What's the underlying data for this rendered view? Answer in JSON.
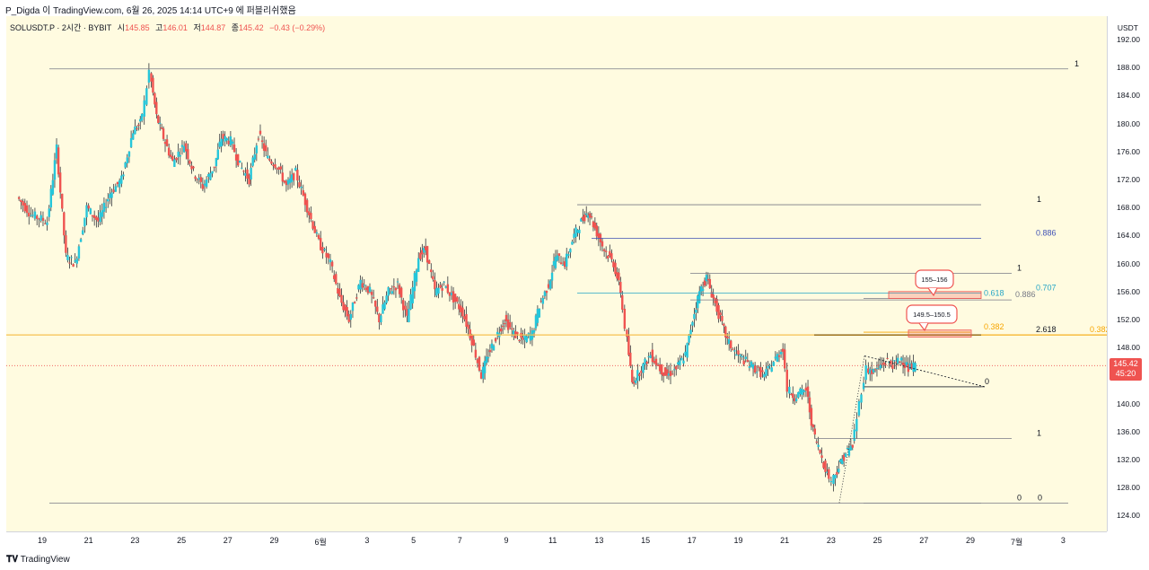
{
  "header": {
    "caption": "P_Digda 이 TradingView.com, 6월 26, 2025 14:14 UTC+9 에 퍼블리쉬했음"
  },
  "legend": {
    "symbol": "SOLUSDT.P · 2시간 · BYBIT",
    "open_label": "시",
    "open": "145.85",
    "high_label": "고",
    "high": "146.01",
    "low_label": "저",
    "low": "144.87",
    "close_label": "종",
    "close": "145.42",
    "change": "−0.43 (−0.29%)"
  },
  "price_axis": {
    "currency": "USDT",
    "ticks": [
      "192.00",
      "188.00",
      "184.00",
      "180.00",
      "176.00",
      "172.00",
      "168.00",
      "164.00",
      "160.00",
      "156.00",
      "152.00",
      "148.00",
      "144.00",
      "140.00",
      "136.00",
      "132.00",
      "128.00",
      "124.00"
    ],
    "last_price": "145.42",
    "countdown": "45:20"
  },
  "time_axis": {
    "ticks": [
      "19",
      "21",
      "23",
      "25",
      "27",
      "29",
      "6월",
      "3",
      "5",
      "7",
      "9",
      "11",
      "13",
      "15",
      "17",
      "19",
      "21",
      "23",
      "25",
      "27",
      "29",
      "7월",
      "3"
    ]
  },
  "footer": {
    "brand": "TradingView"
  },
  "colors": {
    "up": "#26c6da",
    "down": "#ef5350",
    "background": "#fffbe0",
    "level": "#f7c04f"
  },
  "chart_data": {
    "type": "candlestick",
    "symbol": "SOLUSDT.P",
    "interval": "2시간",
    "exchange": "BYBIT",
    "ylim": [
      122,
      194
    ],
    "x_range_days": [
      18,
      53
    ],
    "path_points": [
      [
        18.0,
        169.5
      ],
      [
        18.6,
        167.0
      ],
      [
        19.3,
        166.0
      ],
      [
        19.7,
        176.5
      ],
      [
        20.1,
        161.0
      ],
      [
        20.5,
        160.0
      ],
      [
        21.0,
        168.0
      ],
      [
        21.5,
        166.0
      ],
      [
        22.0,
        170.0
      ],
      [
        22.5,
        172.0
      ],
      [
        23.0,
        179.0
      ],
      [
        23.3,
        180.0
      ],
      [
        23.5,
        183.0
      ],
      [
        23.7,
        187.5
      ],
      [
        24.0,
        181.0
      ],
      [
        24.3,
        178.0
      ],
      [
        24.7,
        174.5
      ],
      [
        25.2,
        177.0
      ],
      [
        25.6,
        173.0
      ],
      [
        26.0,
        171.0
      ],
      [
        26.5,
        174.0
      ],
      [
        26.8,
        178.0
      ],
      [
        27.2,
        177.5
      ],
      [
        27.6,
        174.0
      ],
      [
        28.0,
        172.0
      ],
      [
        28.4,
        178.5
      ],
      [
        28.8,
        175.0
      ],
      [
        29.2,
        174.0
      ],
      [
        29.6,
        171.0
      ],
      [
        30.0,
        173.0
      ],
      [
        30.5,
        168.0
      ],
      [
        31.0,
        163.0
      ],
      [
        31.5,
        160.0
      ],
      [
        31.9,
        155.0
      ],
      [
        32.3,
        152.0
      ],
      [
        32.8,
        157.5
      ],
      [
        33.2,
        156.0
      ],
      [
        33.6,
        152.0
      ],
      [
        34.0,
        156.0
      ],
      [
        34.4,
        157.0
      ],
      [
        34.8,
        152.0
      ],
      [
        35.3,
        161.0
      ],
      [
        35.6,
        162.0
      ],
      [
        36.0,
        156.0
      ],
      [
        36.4,
        157.0
      ],
      [
        36.8,
        155.0
      ],
      [
        37.2,
        153.0
      ],
      [
        37.6,
        149.0
      ],
      [
        38.0,
        144.0
      ],
      [
        38.3,
        147.0
      ],
      [
        38.7,
        150.0
      ],
      [
        39.0,
        152.0
      ],
      [
        39.4,
        150.0
      ],
      [
        39.8,
        149.0
      ],
      [
        40.2,
        150.0
      ],
      [
        40.5,
        154.0
      ],
      [
        40.9,
        157.0
      ],
      [
        41.2,
        161.0
      ],
      [
        41.6,
        160.0
      ],
      [
        42.0,
        164.0
      ],
      [
        42.3,
        166.0
      ],
      [
        42.6,
        167.5
      ],
      [
        42.9,
        165.0
      ],
      [
        43.3,
        162.0
      ],
      [
        43.7,
        160.0
      ],
      [
        44.0,
        156.0
      ],
      [
        44.2,
        151.0
      ],
      [
        44.5,
        143.0
      ],
      [
        44.9,
        145.0
      ],
      [
        45.3,
        147.0
      ],
      [
        45.7,
        145.0
      ],
      [
        46.0,
        144.0
      ],
      [
        46.4,
        145.0
      ],
      [
        46.8,
        147.0
      ],
      [
        47.1,
        152.0
      ],
      [
        47.4,
        156.0
      ],
      [
        47.7,
        158.0
      ],
      [
        48.0,
        155.0
      ],
      [
        48.3,
        152.0
      ],
      [
        48.6,
        149.0
      ],
      [
        49.0,
        147.0
      ],
      [
        49.4,
        146.0
      ],
      [
        49.8,
        145.0
      ],
      [
        50.2,
        144.0
      ],
      [
        50.6,
        146.0
      ],
      [
        51.0,
        148.0
      ],
      [
        51.2,
        142.0
      ],
      [
        51.5,
        141.0
      ],
      [
        52.0,
        142.0
      ],
      [
        52.3,
        136.0
      ],
      [
        52.6,
        133.0
      ],
      [
        52.9,
        130.0
      ],
      [
        53.1,
        129.0
      ]
    ],
    "segment2_points": [
      [
        53.1,
        129.0
      ],
      [
        53.4,
        131.0
      ],
      [
        53.7,
        133.0
      ],
      [
        54.0,
        134.0
      ],
      [
        54.2,
        138.0
      ],
      [
        54.4,
        142.0
      ],
      [
        54.6,
        145.0
      ],
      [
        54.9,
        144.5
      ],
      [
        55.2,
        145.5
      ],
      [
        55.5,
        146.0
      ],
      [
        55.8,
        145.5
      ],
      [
        56.1,
        146.5
      ],
      [
        56.4,
        145.0
      ],
      [
        56.7,
        145.4
      ]
    ],
    "fib_levels": [
      {
        "label": "1",
        "price": 187.8
      },
      {
        "label": "0",
        "price": 125.8
      },
      {
        "label": "1",
        "price": 168.4
      },
      {
        "label": "0.886",
        "price": 163.6
      },
      {
        "label": "1",
        "price": 158.6
      },
      {
        "label": "0.707",
        "price": 155.8
      },
      {
        "label": "0.618",
        "price": 155.0
      },
      {
        "label": "0.886",
        "price": 154.8
      },
      {
        "label": "0.382",
        "price": 150.2
      },
      {
        "label": "2.618",
        "price": 149.8
      },
      {
        "label": "0.382",
        "price": 149.8
      },
      {
        "label": "0",
        "price": 142.4
      },
      {
        "label": "1",
        "price": 135.0
      },
      {
        "label": "0",
        "price": 125.8
      }
    ],
    "annotations": [
      {
        "text": "155–156",
        "zone": [
          155.0,
          156.0
        ]
      },
      {
        "text": "149.5–150.5",
        "zone": [
          149.5,
          150.5
        ]
      }
    ],
    "last_price": 145.42
  }
}
